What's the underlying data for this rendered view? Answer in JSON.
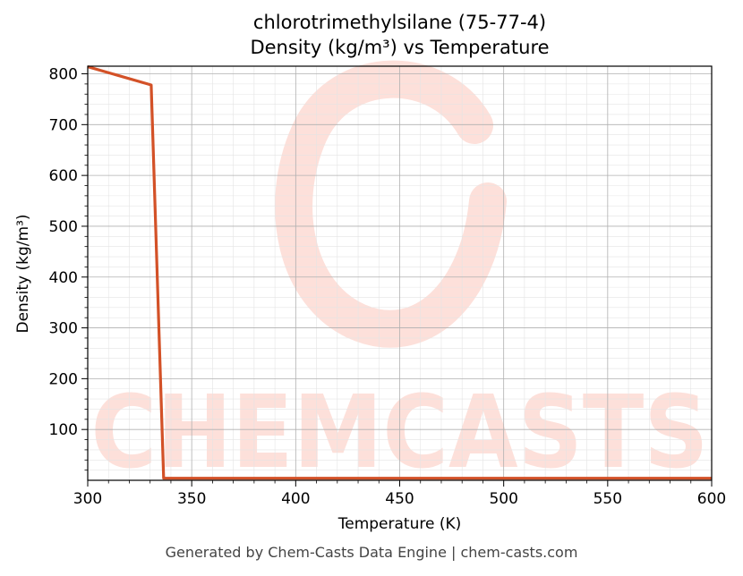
{
  "title_line1": "chlorotrimethylsilane (75-77-4)",
  "title_line2": "Density (kg/m³) vs Temperature",
  "footer": "Generated by Chem-Casts Data Engine | chem-casts.com",
  "watermark_text": "CHEMCASTS",
  "colors": {
    "line": "#d35127",
    "watermark": "#fde0da",
    "grid_major": "#b0b0b0",
    "grid_minor": "#e4e4e4"
  },
  "chart_data": {
    "type": "line",
    "title": "chlorotrimethylsilane (75-77-4)\nDensity (kg/m³) vs Temperature",
    "xlabel": "Temperature (K)",
    "ylabel": "Density (kg/m³)",
    "xlim": [
      300,
      600
    ],
    "ylim": [
      0,
      815
    ],
    "xticks": [
      300,
      350,
      400,
      450,
      500,
      550,
      600
    ],
    "yticks": [
      100,
      200,
      300,
      400,
      500,
      600,
      700,
      800
    ],
    "grid": true,
    "series": [
      {
        "x": [
          300,
          330.5,
          336.5,
          337,
          600
        ],
        "y": [
          814,
          778,
          4,
          4,
          4
        ]
      }
    ]
  }
}
